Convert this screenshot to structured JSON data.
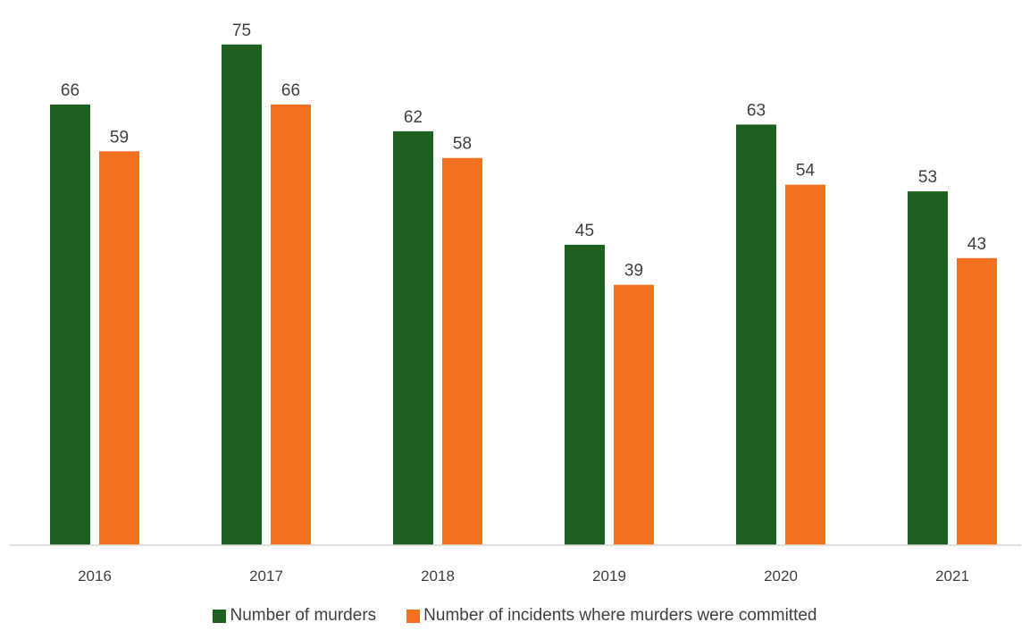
{
  "chart_data": {
    "type": "bar",
    "categories": [
      "2016",
      "2017",
      "2018",
      "2019",
      "2020",
      "2021"
    ],
    "series": [
      {
        "name": "Number of murders",
        "color": "#1f6020",
        "values": [
          66,
          75,
          62,
          45,
          63,
          53
        ]
      },
      {
        "name": "Number of incidents where murders were committed",
        "color": "#f37021",
        "values": [
          59,
          66,
          58,
          39,
          54,
          43
        ]
      }
    ],
    "ylim": [
      0,
      80
    ],
    "grid": false,
    "data_labels": true,
    "legend_position": "bottom",
    "axis_line_color": "#d9d9d9",
    "text_color": "#404040"
  }
}
